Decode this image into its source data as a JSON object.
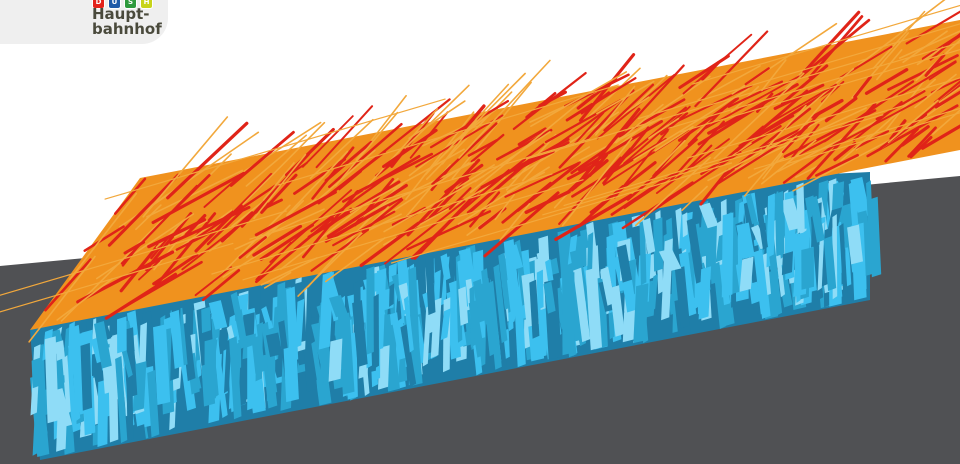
{
  "logo": {
    "line1": "Haupt-",
    "line2": "bahnhof",
    "badges": [
      {
        "name": "db-badge",
        "color": "#e3221b",
        "glyph": "DB"
      },
      {
        "name": "ubahn-badge",
        "color": "#1e5aa8",
        "glyph": "U"
      },
      {
        "name": "sbahn-badge",
        "color": "#2e9a3d",
        "glyph": "S"
      },
      {
        "name": "tram-badge",
        "color": "#c7d41a",
        "glyph": "H"
      }
    ]
  },
  "colors": {
    "background": "#ffffff",
    "ground": "#505154",
    "roof": "#f0921e",
    "stick_red": "#e02418",
    "stick_orange": "#f2a83c",
    "blue_light": "#3cc0ef",
    "blue_mid": "#2aa5d0",
    "blue_dark": "#1f7ea8",
    "blue_pale": "#8fdcf7"
  }
}
